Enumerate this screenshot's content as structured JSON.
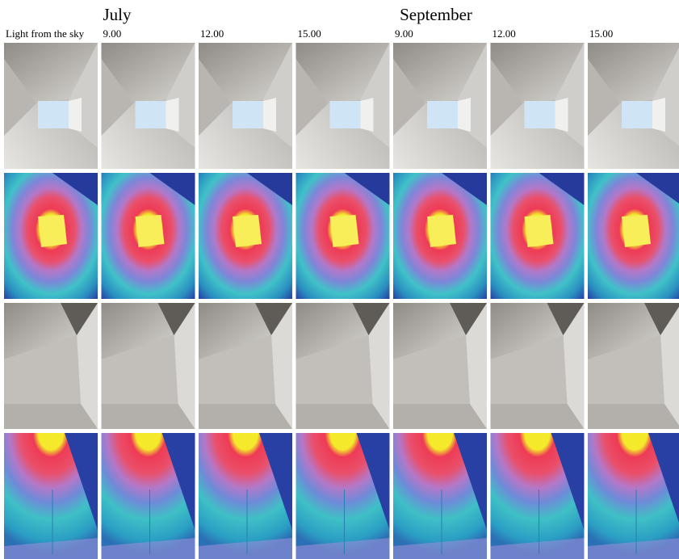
{
  "groups": [
    "July",
    "September"
  ],
  "columns": [
    "Light from the sky",
    "9.00",
    "12.00",
    "15.00",
    "9.00",
    "12.00",
    "15.00"
  ]
}
